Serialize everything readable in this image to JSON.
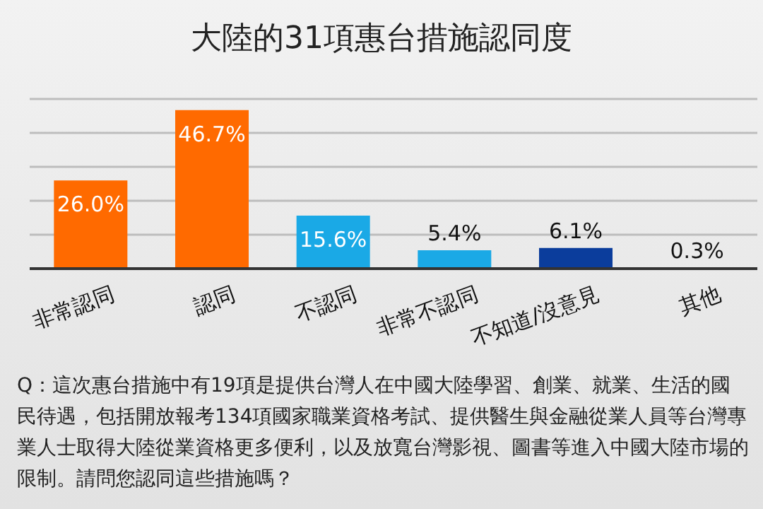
{
  "chart_data": {
    "type": "bar",
    "title": "大陸的31項惠台措施認同度",
    "categories": [
      "非常認同",
      "認同",
      "不認同",
      "非常不認同",
      "不知道/沒意見",
      "其他"
    ],
    "values": [
      26.0,
      46.7,
      15.6,
      5.4,
      6.1,
      0.3
    ],
    "colors": [
      "#ff6a00",
      "#ff6a00",
      "#1aa9e6",
      "#1aa9e6",
      "#0b3d9c",
      "#0b3d9c"
    ],
    "value_labels": [
      "26.0%",
      "46.7%",
      "15.6%",
      "5.4%",
      "6.1%",
      "0.3%"
    ],
    "tick_labels": "x",
    "grid": "y",
    "annotations": [
      "Q：這次惠台措施中有19項是提供台灣人在中國大陸學習、創業、就業、生活的國民待遇，包括開放報考134項國家職業資格考試、提供醫生與金融從業人員等台灣專業人士取得大陸從業資格更多便利，以及放寬台灣影視、圖書等進入中國大陸市場的限制。請問您認同這些措施嗎？"
    ]
  }
}
